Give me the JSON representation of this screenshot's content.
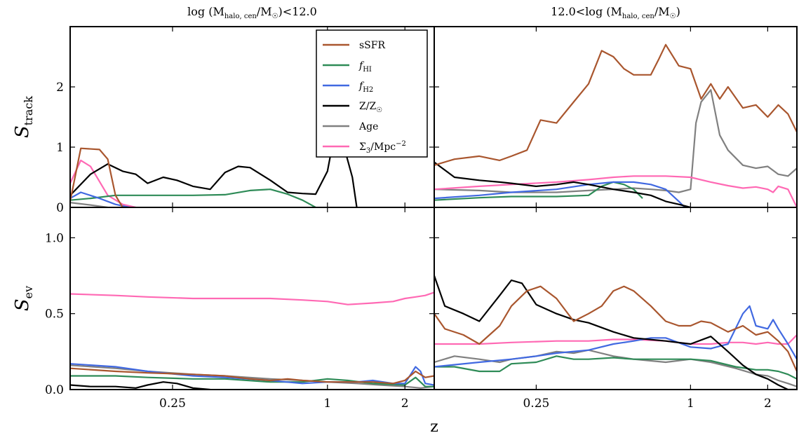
{
  "chart_data": {
    "type": "line",
    "xlabel": "z",
    "x_scale": "log",
    "x_ticks": [
      0.25,
      1,
      2
    ],
    "x_tick_labels": [
      "0.25",
      "1",
      "2"
    ],
    "xlim": [
      0.1,
      2.6
    ],
    "column_titles": [
      {
        "pre": "log (M",
        "sub": "halo, cen",
        "post": "/M",
        "sun_sub": "☉",
        "tail": ")<12.0"
      },
      {
        "pre": "12.0<log (M",
        "sub": "halo, cen",
        "post": "/M",
        "sun_sub": "☉",
        "tail": ")"
      }
    ],
    "rows": [
      {
        "ylabel_main": "S",
        "ylabel_sub": "track",
        "ylim": [
          0,
          3.0
        ],
        "yticks": [
          0,
          1,
          2
        ],
        "ytick_labels": [
          "0",
          "1",
          "2"
        ]
      },
      {
        "ylabel_main": "S",
        "ylabel_sub": "ev",
        "ylim": [
          0,
          1.2
        ],
        "yticks": [
          0.0,
          0.5,
          1.0
        ],
        "ytick_labels": [
          "0.0",
          "0.5",
          "1.0"
        ]
      }
    ],
    "legend": {
      "placement": "top-left panel, upper right",
      "entries": [
        {
          "key": "ssfr",
          "label": "sSFR",
          "color": "#a9562e"
        },
        {
          "key": "fhi",
          "label_pre": "f",
          "label_sub": "HI",
          "color": "#2e8b57"
        },
        {
          "key": "fh2",
          "label_pre": "f",
          "label_sub": "H2",
          "color": "#4169e1"
        },
        {
          "key": "z",
          "label_pre": "Z/Z",
          "label_sub": "☉",
          "color": "#000000"
        },
        {
          "key": "age",
          "label": "Age",
          "color": "#808080"
        },
        {
          "key": "sigma",
          "label_pre": "Σ",
          "label_sub": "3",
          "label_post": "/Mpc",
          "label_sup": "−2",
          "color": "#ff69b4"
        }
      ]
    },
    "panels": [
      {
        "row": 0,
        "col": 0,
        "series": {
          "ssfr": {
            "x": [
              0.1,
              0.11,
              0.13,
              0.14,
              0.15,
              0.16
            ],
            "y": [
              0.1,
              0.98,
              0.96,
              0.8,
              0.2,
              0.0
            ]
          },
          "fhi": {
            "x": [
              0.1,
              0.12,
              0.15,
              0.2,
              0.3,
              0.4,
              0.5,
              0.6,
              0.7,
              0.8,
              0.9
            ],
            "y": [
              0.12,
              0.15,
              0.2,
              0.2,
              0.2,
              0.21,
              0.28,
              0.3,
              0.22,
              0.12,
              0.0
            ]
          },
          "fh2": {
            "x": [
              0.1,
              0.11,
              0.13,
              0.15,
              0.17
            ],
            "y": [
              0.15,
              0.25,
              0.15,
              0.05,
              0.0
            ]
          },
          "z": {
            "x": [
              0.1,
              0.12,
              0.14,
              0.16,
              0.18,
              0.2,
              0.23,
              0.26,
              0.3,
              0.35,
              0.4,
              0.45,
              0.5,
              0.6,
              0.7,
              0.8,
              0.9,
              1.0,
              1.05,
              1.15,
              1.25,
              1.3
            ],
            "y": [
              0.2,
              0.55,
              0.72,
              0.6,
              0.55,
              0.4,
              0.5,
              0.45,
              0.35,
              0.3,
              0.58,
              0.68,
              0.66,
              0.45,
              0.25,
              0.23,
              0.22,
              0.6,
              1.08,
              1.06,
              0.5,
              0.0
            ]
          },
          "age": {
            "x": [
              0.1,
              0.12,
              0.14
            ],
            "y": [
              0.08,
              0.04,
              0.0
            ]
          },
          "sigma": {
            "x": [
              0.1,
              0.11,
              0.12,
              0.14,
              0.16,
              0.18
            ],
            "y": [
              0.4,
              0.78,
              0.68,
              0.2,
              0.05,
              0.0
            ]
          }
        }
      },
      {
        "row": 0,
        "col": 1,
        "series": {
          "ssfr": {
            "x": [
              0.1,
              0.12,
              0.15,
              0.18,
              0.2,
              0.23,
              0.26,
              0.3,
              0.35,
              0.4,
              0.45,
              0.5,
              0.55,
              0.6,
              0.65,
              0.7,
              0.75,
              0.8,
              0.9,
              1.0,
              1.1,
              1.2,
              1.3,
              1.4,
              1.6,
              1.8,
              2.0,
              2.2,
              2.4,
              2.6
            ],
            "y": [
              0.7,
              0.8,
              0.85,
              0.78,
              0.85,
              0.95,
              1.45,
              1.4,
              1.75,
              2.05,
              2.6,
              2.5,
              2.3,
              2.2,
              2.2,
              2.2,
              2.45,
              2.7,
              2.35,
              2.3,
              1.8,
              2.05,
              1.8,
              2.0,
              1.65,
              1.7,
              1.5,
              1.7,
              1.55,
              1.25
            ]
          },
          "fhi": {
            "x": [
              0.1,
              0.15,
              0.2,
              0.3,
              0.4,
              0.45,
              0.5,
              0.55,
              0.6,
              0.65
            ],
            "y": [
              0.12,
              0.16,
              0.18,
              0.18,
              0.2,
              0.35,
              0.42,
              0.38,
              0.3,
              0.15
            ]
          },
          "fh2": {
            "x": [
              0.1,
              0.15,
              0.2,
              0.3,
              0.4,
              0.5,
              0.6,
              0.7,
              0.8,
              0.9,
              0.95
            ],
            "y": [
              0.15,
              0.2,
              0.25,
              0.3,
              0.38,
              0.42,
              0.42,
              0.38,
              0.3,
              0.1,
              0.0
            ]
          },
          "z": {
            "x": [
              0.1,
              0.12,
              0.15,
              0.18,
              0.2,
              0.25,
              0.3,
              0.35,
              0.4,
              0.5,
              0.6,
              0.7,
              0.8,
              0.9,
              1.0
            ],
            "y": [
              0.75,
              0.5,
              0.45,
              0.42,
              0.4,
              0.35,
              0.38,
              0.42,
              0.38,
              0.3,
              0.25,
              0.2,
              0.1,
              0.05,
              0.0
            ]
          },
          "age": {
            "x": [
              0.1,
              0.15,
              0.2,
              0.3,
              0.4,
              0.5,
              0.6,
              0.7,
              0.8,
              0.9,
              1.0,
              1.05,
              1.1,
              1.2,
              1.3,
              1.4,
              1.6,
              1.8,
              2.0,
              2.2,
              2.4,
              2.6
            ],
            "y": [
              0.3,
              0.28,
              0.25,
              0.25,
              0.28,
              0.3,
              0.32,
              0.3,
              0.28,
              0.25,
              0.3,
              1.4,
              1.75,
              1.95,
              1.2,
              0.95,
              0.7,
              0.65,
              0.68,
              0.55,
              0.52,
              0.65
            ]
          },
          "sigma": {
            "x": [
              0.1,
              0.15,
              0.2,
              0.3,
              0.4,
              0.5,
              0.6,
              0.7,
              0.8,
              1.0,
              1.2,
              1.4,
              1.6,
              1.8,
              2.0,
              2.1,
              2.2,
              2.4,
              2.6
            ],
            "y": [
              0.3,
              0.35,
              0.38,
              0.42,
              0.46,
              0.5,
              0.52,
              0.52,
              0.52,
              0.5,
              0.42,
              0.36,
              0.32,
              0.34,
              0.3,
              0.25,
              0.35,
              0.3,
              0.0
            ]
          }
        }
      },
      {
        "row": 1,
        "col": 0,
        "series": {
          "ssfr": {
            "x": [
              0.1,
              0.15,
              0.2,
              0.3,
              0.4,
              0.5,
              0.6,
              0.7,
              0.8,
              1.0,
              1.2,
              1.5,
              1.8,
              2.0,
              2.2,
              2.4,
              2.6
            ],
            "y": [
              0.14,
              0.12,
              0.11,
              0.1,
              0.09,
              0.07,
              0.06,
              0.07,
              0.06,
              0.05,
              0.05,
              0.05,
              0.04,
              0.06,
              0.12,
              0.08,
              0.09
            ]
          },
          "fhi": {
            "x": [
              0.1,
              0.15,
              0.2,
              0.3,
              0.4,
              0.6,
              0.8,
              1.0,
              1.2,
              1.5,
              2.0,
              2.2,
              2.4,
              2.6
            ],
            "y": [
              0.09,
              0.09,
              0.08,
              0.07,
              0.07,
              0.05,
              0.05,
              0.07,
              0.06,
              0.04,
              0.03,
              0.08,
              0.02,
              0.02
            ]
          },
          "fh2": {
            "x": [
              0.1,
              0.15,
              0.2,
              0.3,
              0.4,
              0.6,
              0.8,
              1.0,
              1.3,
              1.5,
              1.8,
              2.0,
              2.2,
              2.3,
              2.4,
              2.6
            ],
            "y": [
              0.17,
              0.15,
              0.12,
              0.09,
              0.08,
              0.06,
              0.04,
              0.05,
              0.05,
              0.06,
              0.04,
              0.04,
              0.15,
              0.12,
              0.04,
              0.03
            ]
          },
          "z": {
            "x": [
              0.1,
              0.12,
              0.15,
              0.18,
              0.2,
              0.23,
              0.26,
              0.3,
              0.35
            ],
            "y": [
              0.03,
              0.02,
              0.02,
              0.01,
              0.03,
              0.05,
              0.04,
              0.01,
              0.0
            ]
          },
          "age": {
            "x": [
              0.1,
              0.15,
              0.2,
              0.3,
              0.4,
              0.6,
              0.8,
              1.0,
              1.3,
              1.6,
              2.0,
              2.3,
              2.6
            ],
            "y": [
              0.16,
              0.14,
              0.12,
              0.1,
              0.09,
              0.07,
              0.06,
              0.05,
              0.04,
              0.03,
              0.02,
              0.01,
              0.02
            ]
          },
          "sigma": {
            "x": [
              0.1,
              0.15,
              0.2,
              0.3,
              0.4,
              0.5,
              0.6,
              0.8,
              1.0,
              1.2,
              1.5,
              1.8,
              2.0,
              2.2,
              2.4,
              2.6
            ],
            "y": [
              0.63,
              0.62,
              0.61,
              0.6,
              0.6,
              0.6,
              0.6,
              0.59,
              0.58,
              0.56,
              0.57,
              0.58,
              0.6,
              0.61,
              0.62,
              0.64
            ]
          }
        }
      },
      {
        "row": 1,
        "col": 1,
        "series": {
          "ssfr": {
            "x": [
              0.1,
              0.11,
              0.13,
              0.15,
              0.18,
              0.2,
              0.23,
              0.26,
              0.3,
              0.35,
              0.4,
              0.45,
              0.5,
              0.55,
              0.6,
              0.7,
              0.8,
              0.9,
              1.0,
              1.1,
              1.2,
              1.4,
              1.6,
              1.8,
              2.0,
              2.2,
              2.4,
              2.6
            ],
            "y": [
              0.5,
              0.4,
              0.36,
              0.3,
              0.42,
              0.55,
              0.65,
              0.68,
              0.6,
              0.45,
              0.5,
              0.55,
              0.65,
              0.68,
              0.65,
              0.55,
              0.45,
              0.42,
              0.42,
              0.45,
              0.44,
              0.38,
              0.42,
              0.36,
              0.38,
              0.32,
              0.25,
              0.12
            ]
          },
          "fhi": {
            "x": [
              0.1,
              0.12,
              0.15,
              0.18,
              0.2,
              0.25,
              0.3,
              0.35,
              0.4,
              0.5,
              0.6,
              0.7,
              0.8,
              1.0,
              1.2,
              1.5,
              1.8,
              2.0,
              2.2,
              2.4,
              2.6
            ],
            "y": [
              0.15,
              0.15,
              0.12,
              0.12,
              0.17,
              0.18,
              0.22,
              0.2,
              0.2,
              0.21,
              0.2,
              0.2,
              0.2,
              0.2,
              0.19,
              0.15,
              0.13,
              0.13,
              0.12,
              0.1,
              0.07
            ]
          },
          "fh2": {
            "x": [
              0.1,
              0.15,
              0.2,
              0.25,
              0.3,
              0.4,
              0.5,
              0.6,
              0.7,
              0.8,
              1.0,
              1.2,
              1.4,
              1.6,
              1.7,
              1.8,
              2.0,
              2.1,
              2.2,
              2.4,
              2.6
            ],
            "y": [
              0.15,
              0.18,
              0.2,
              0.22,
              0.24,
              0.26,
              0.3,
              0.32,
              0.34,
              0.34,
              0.28,
              0.27,
              0.3,
              0.5,
              0.55,
              0.42,
              0.4,
              0.46,
              0.4,
              0.3,
              0.2
            ]
          },
          "z": {
            "x": [
              0.1,
              0.11,
              0.13,
              0.15,
              0.18,
              0.2,
              0.22,
              0.25,
              0.3,
              0.35,
              0.4,
              0.5,
              0.6,
              0.8,
              1.0,
              1.2,
              1.4,
              1.6,
              1.8,
              2.0,
              2.2,
              2.4,
              2.6
            ],
            "y": [
              0.75,
              0.55,
              0.5,
              0.45,
              0.62,
              0.72,
              0.7,
              0.56,
              0.5,
              0.46,
              0.44,
              0.38,
              0.34,
              0.32,
              0.3,
              0.35,
              0.25,
              0.16,
              0.1,
              0.07,
              0.03,
              0.0,
              0.0
            ]
          },
          "age": {
            "x": [
              0.1,
              0.12,
              0.15,
              0.18,
              0.2,
              0.25,
              0.3,
              0.35,
              0.4,
              0.5,
              0.6,
              0.8,
              1.0,
              1.2,
              1.5,
              1.8,
              2.0,
              2.2,
              2.4,
              2.6
            ],
            "y": [
              0.18,
              0.22,
              0.2,
              0.18,
              0.2,
              0.22,
              0.25,
              0.24,
              0.26,
              0.22,
              0.2,
              0.18,
              0.2,
              0.18,
              0.14,
              0.1,
              0.09,
              0.06,
              0.04,
              0.02
            ]
          },
          "sigma": {
            "x": [
              0.1,
              0.15,
              0.2,
              0.3,
              0.4,
              0.5,
              0.6,
              0.8,
              1.0,
              1.2,
              1.4,
              1.6,
              1.8,
              2.0,
              2.2,
              2.4,
              2.6
            ],
            "y": [
              0.3,
              0.3,
              0.31,
              0.32,
              0.32,
              0.33,
              0.33,
              0.32,
              0.3,
              0.3,
              0.31,
              0.31,
              0.3,
              0.31,
              0.3,
              0.3,
              0.36
            ]
          }
        }
      }
    ]
  }
}
